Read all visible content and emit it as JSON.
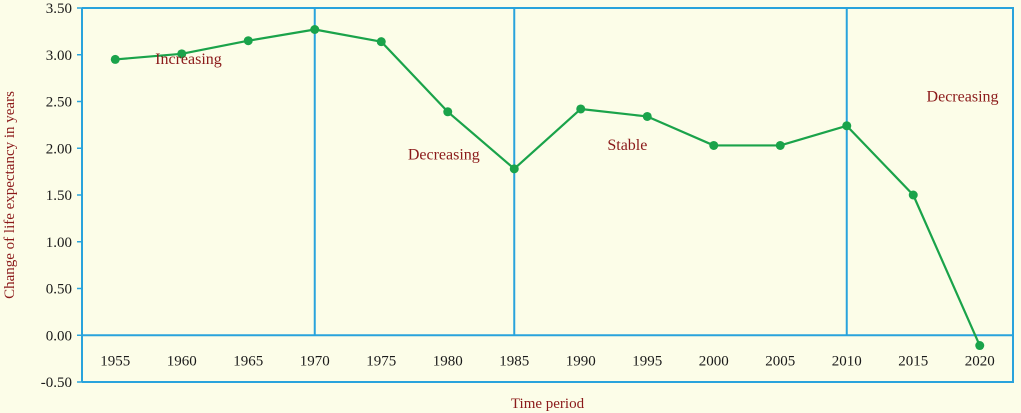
{
  "chart_data": {
    "type": "line",
    "x": [
      1955,
      1960,
      1965,
      1970,
      1975,
      1980,
      1985,
      1990,
      1995,
      2000,
      2005,
      2010,
      2015,
      2020
    ],
    "y": [
      2.95,
      3.01,
      3.15,
      3.27,
      3.14,
      2.39,
      1.78,
      2.42,
      2.34,
      2.03,
      2.03,
      2.24,
      1.5,
      -0.11
    ],
    "xlabel": "Time period",
    "ylabel": "Change of life expectancy in years",
    "ylim": [
      -0.5,
      3.5
    ],
    "xlim": [
      1952.5,
      2022.5
    ],
    "y_ticks": [
      "3.50",
      "3.00",
      "2.50",
      "2.00",
      "1.50",
      "1.00",
      "0.50",
      "0.00",
      "-0.50"
    ],
    "x_ticks": [
      "1955",
      "1960",
      "1965",
      "1970",
      "1975",
      "1980",
      "1985",
      "1990",
      "1995",
      "2000",
      "2005",
      "2010",
      "2015",
      "2020"
    ],
    "period_dividers": [
      1970,
      1985,
      2010
    ],
    "annotations": [
      {
        "text": "Increasing",
        "x": 1958,
        "y": 2.9
      },
      {
        "text": "Decreasing",
        "x": 1977,
        "y": 1.88
      },
      {
        "text": "Stable",
        "x": 1992,
        "y": 1.98
      },
      {
        "text": "Decreasing",
        "x": 2016,
        "y": 2.5
      }
    ],
    "grid": false,
    "colors": {
      "line": "#1aa34a",
      "marker": "#1aa34a",
      "divider": "#29a3dc",
      "frame": "#29a3dc",
      "zero_line": "#29a3dc",
      "label": "#8b1a1a",
      "background": "#fcfde8"
    }
  }
}
